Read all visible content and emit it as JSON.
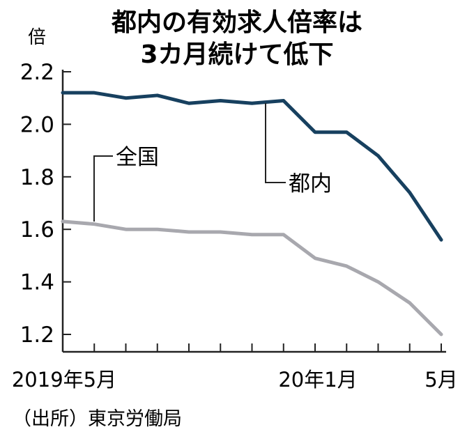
{
  "chart_data": {
    "type": "line",
    "title_lines": [
      "都内の有効求人倍率は",
      "3カ月続けて低下"
    ],
    "y_unit": "倍",
    "ylim": [
      1.2,
      2.2
    ],
    "y_ticks": [
      "2.2",
      "2.0",
      "1.8",
      "1.6",
      "1.4",
      "1.2"
    ],
    "x_tick_labels": [
      "2019年5月",
      "20年1月",
      "5月"
    ],
    "x_count": 13,
    "series": [
      {
        "name": "都内",
        "color": "#17405f",
        "values": [
          2.12,
          2.12,
          2.1,
          2.11,
          2.08,
          2.09,
          2.08,
          2.09,
          1.97,
          1.97,
          1.88,
          1.74,
          1.56
        ]
      },
      {
        "name": "全国",
        "color": "#a8a8ae",
        "values": [
          1.63,
          1.62,
          1.6,
          1.6,
          1.59,
          1.59,
          1.58,
          1.58,
          1.49,
          1.46,
          1.4,
          1.32,
          1.2
        ]
      }
    ],
    "grid": false,
    "legend": "inline-callouts"
  },
  "source": "（出所）東京労働局"
}
